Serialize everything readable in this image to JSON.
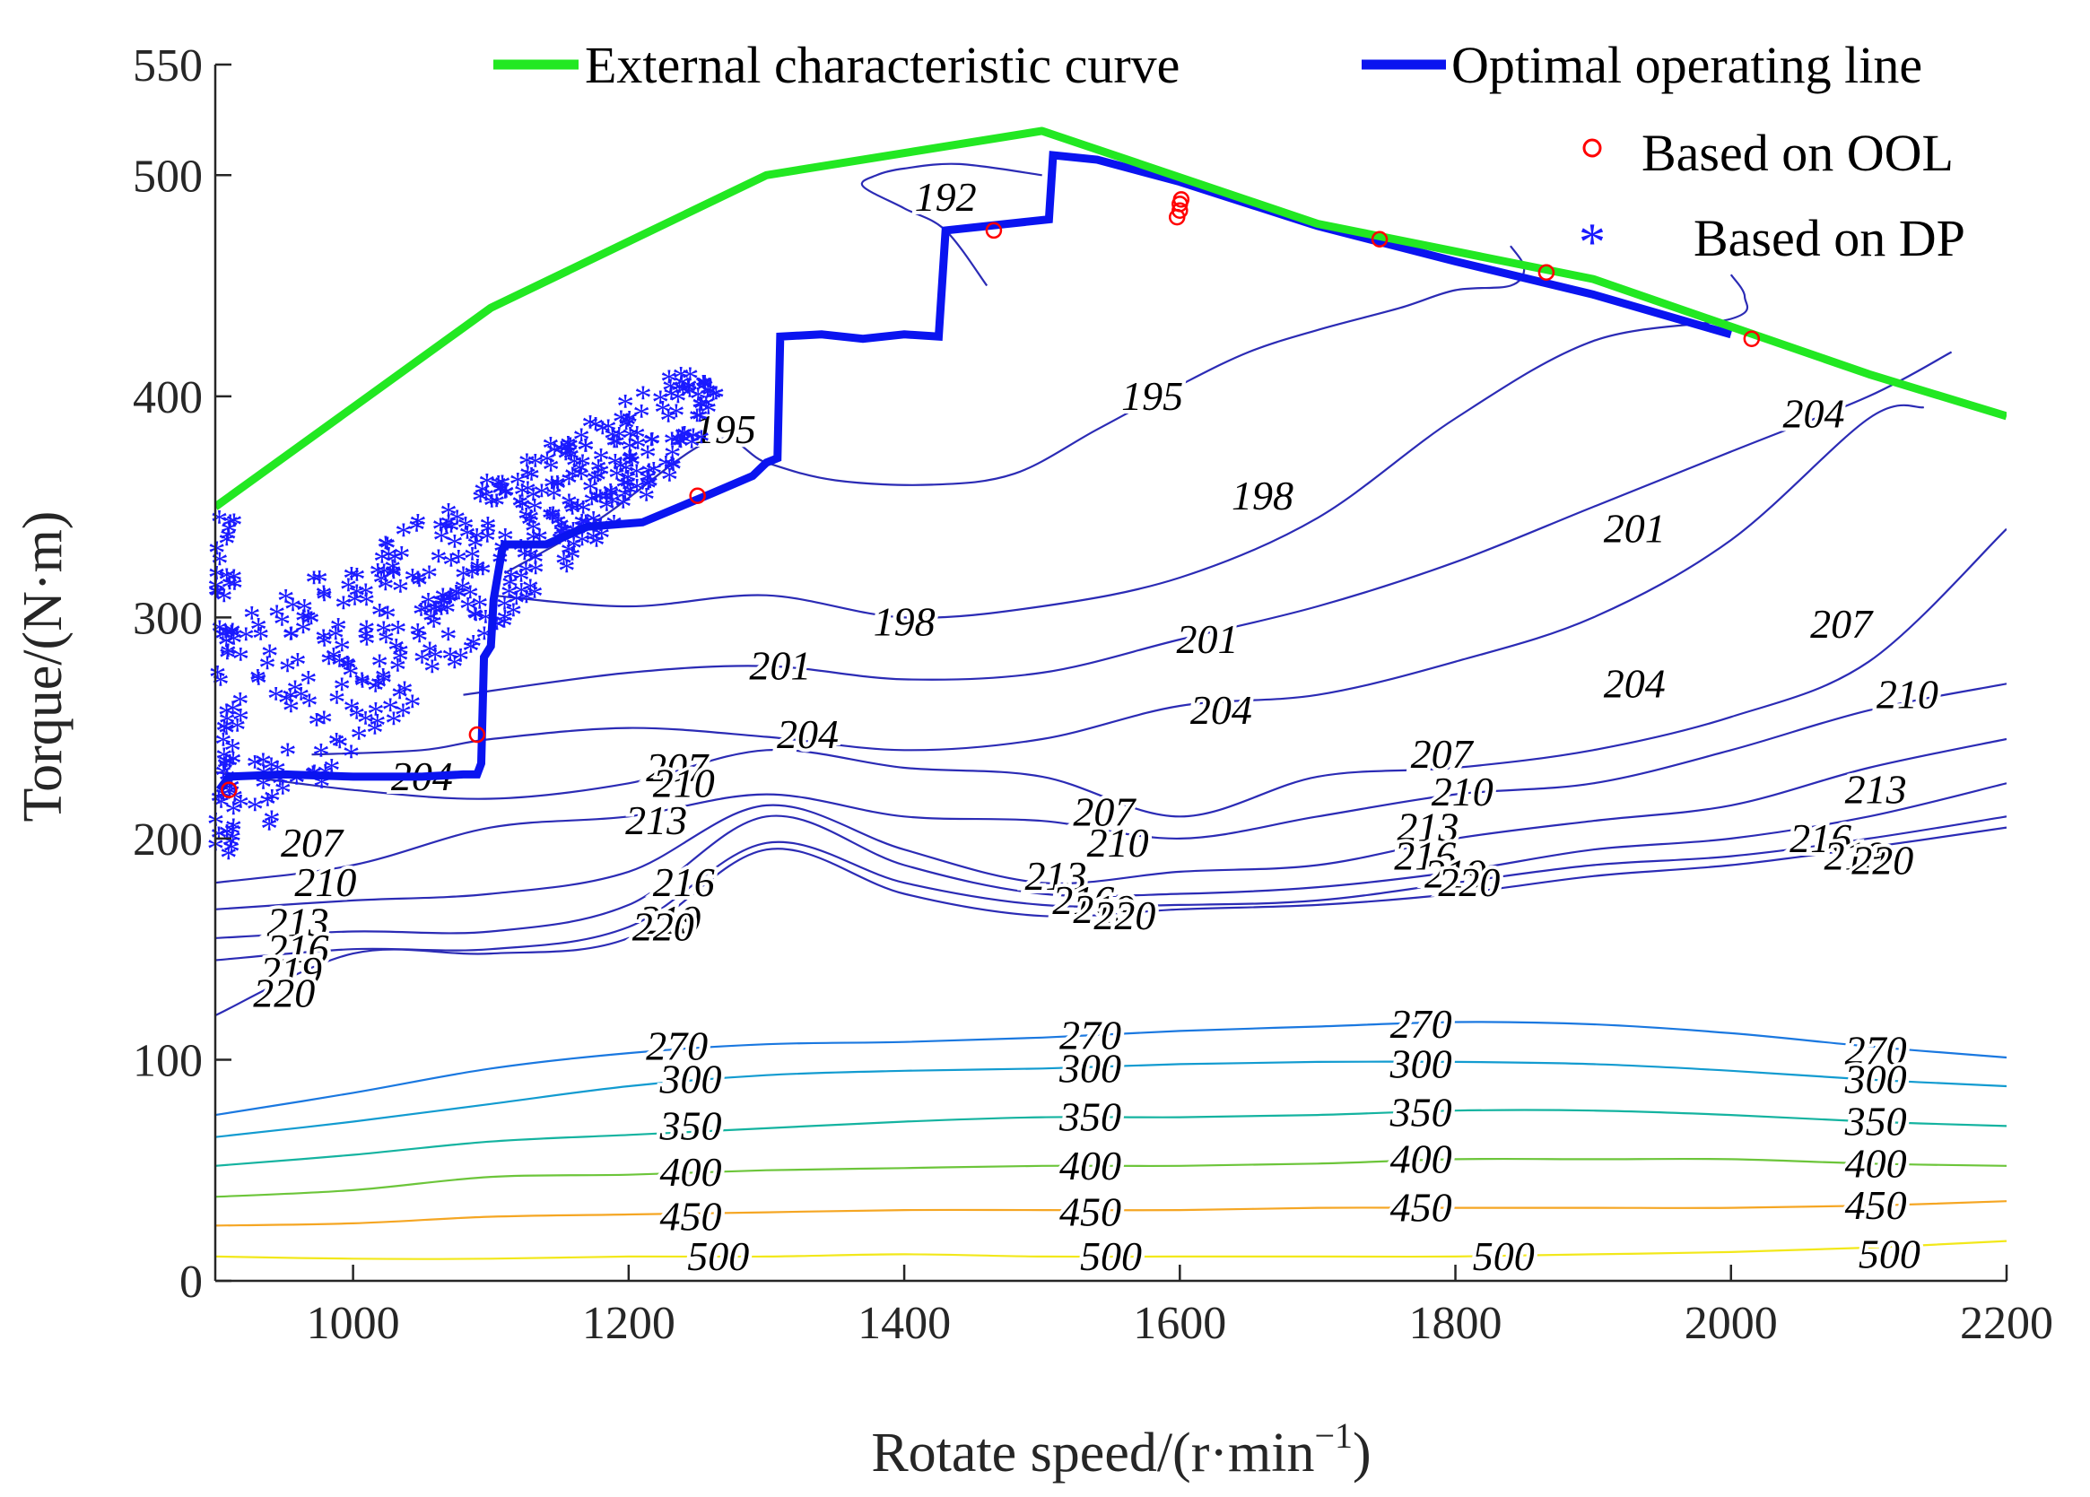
{
  "chart_data": {
    "type": "line",
    "xlabel": "Rotate speed/(r·min",
    "xlabel_exponent": "−1",
    "xlabel_close": ")",
    "ylabel": "Torque/(N·m)",
    "xlim": [
      900,
      2200
    ],
    "ylim": [
      0,
      550
    ],
    "xticks": [
      1000,
      1200,
      1400,
      1600,
      1800,
      2000,
      2200
    ],
    "yticks": [
      0,
      100,
      200,
      300,
      400,
      500,
      550
    ],
    "legend_position": "top-right",
    "series": [
      {
        "name": "External characteristic curve",
        "color": "#22e822",
        "x": [
          900,
          1100,
          1300,
          1500,
          1700,
          1900,
          2100,
          2200
        ],
        "y": [
          350,
          440,
          500,
          520,
          478,
          453,
          410,
          391
        ]
      },
      {
        "name": "Optimal operating line",
        "color": "#0a14f0",
        "x": [
          903,
          910,
          950,
          1000,
          1050,
          1080,
          1090,
          1093,
          1095,
          1100,
          1102,
          1108,
          1110,
          1140,
          1170,
          1210,
          1260,
          1290,
          1300,
          1308,
          1310,
          1340,
          1370,
          1400,
          1425,
          1430,
          1460,
          1505,
          1508,
          1540,
          1600,
          1700,
          1800,
          1900,
          2000
        ],
        "y": [
          222,
          228,
          229,
          228,
          228,
          229,
          229,
          234,
          282,
          287,
          308,
          330,
          333,
          333,
          341,
          343,
          356,
          364,
          370,
          372,
          427,
          428,
          426,
          428,
          427,
          475,
          477,
          480,
          509,
          507,
          497,
          477,
          461,
          446,
          428
        ]
      },
      {
        "name": "Based on OOL",
        "color": "#ff0000",
        "marker": "circle",
        "x": [
          910,
          1090,
          1250,
          1465,
          1598,
          1600,
          1600,
          1601,
          1745,
          1866,
          2015
        ],
        "y": [
          222,
          247,
          355,
          475,
          481,
          484,
          487,
          489,
          471,
          456,
          426
        ]
      },
      {
        "name": "Based on DP",
        "color": "#1a1aff",
        "marker": "asterisk",
        "count_note": "cloud of several hundred asterisks, approx. x 900-1270, y 190-410"
      }
    ],
    "contours": [
      {
        "level": 192,
        "x": [
          1460,
          1430,
          1400,
          1370,
          1380,
          1400,
          1440,
          1500
        ],
        "y": [
          450,
          475,
          485,
          495,
          500,
          503,
          505,
          500
        ],
        "labels": [
          [
            1430,
            490
          ]
        ]
      },
      {
        "level": 195,
        "x": [
          1110,
          1180,
          1260,
          1300,
          1350,
          1420,
          1480,
          1540,
          1600,
          1650,
          1700,
          1760,
          1800,
          1840,
          1850,
          1840
        ],
        "y": [
          320,
          345,
          380,
          370,
          362,
          360,
          365,
          385,
          405,
          420,
          430,
          440,
          448,
          450,
          458,
          468
        ],
        "labels": [
          [
            1270,
            385
          ],
          [
            1580,
            400
          ]
        ]
      },
      {
        "level": 198,
        "x": [
          1100,
          1200,
          1300,
          1400,
          1500,
          1600,
          1700,
          1800,
          1900,
          2000,
          2010,
          2000
        ],
        "y": [
          310,
          305,
          310,
          300,
          305,
          318,
          345,
          390,
          425,
          435,
          445,
          455
        ],
        "labels": [
          [
            1400,
            298
          ],
          [
            1660,
            355
          ]
        ]
      },
      {
        "level": 201,
        "x": [
          1080,
          1200,
          1300,
          1400,
          1500,
          1600,
          1700,
          1800,
          1900,
          2000,
          2100,
          2160
        ],
        "y": [
          265,
          275,
          278,
          272,
          275,
          290,
          305,
          325,
          350,
          375,
          400,
          420
        ],
        "labels": [
          [
            1310,
            278
          ],
          [
            1620,
            290
          ],
          [
            1930,
            340
          ]
        ]
      },
      {
        "level": 204,
        "x": [
          970,
          1050,
          1100,
          1200,
          1300,
          1400,
          1500,
          1600,
          1700,
          1800,
          1900,
          2000,
          2100,
          2140
        ],
        "y": [
          238,
          240,
          245,
          250,
          246,
          240,
          245,
          260,
          265,
          280,
          300,
          335,
          390,
          395
        ],
        "labels": [
          [
            1050,
            228
          ],
          [
            1330,
            247
          ],
          [
            1630,
            258
          ],
          [
            1930,
            270
          ],
          [
            2060,
            392
          ]
        ]
      },
      {
        "level": 207,
        "x": [
          900,
          1000,
          1100,
          1200,
          1300,
          1400,
          1500,
          1600,
          1700,
          1800,
          1900,
          2000,
          2100,
          2200
        ],
        "y": [
          230,
          222,
          218,
          225,
          240,
          232,
          228,
          210,
          228,
          232,
          240,
          255,
          280,
          340
        ],
        "labels": [
          [
            970,
            198
          ],
          [
            1235,
            232
          ],
          [
            1545,
            212
          ],
          [
            1790,
            238
          ],
          [
            2080,
            297
          ]
        ]
      },
      {
        "level": 210,
        "x": [
          900,
          1000,
          1100,
          1200,
          1300,
          1400,
          1500,
          1600,
          1700,
          1800,
          1900,
          2000,
          2100,
          2200
        ],
        "y": [
          180,
          188,
          205,
          210,
          220,
          210,
          208,
          200,
          210,
          220,
          225,
          240,
          258,
          270
        ],
        "labels": [
          [
            980,
            180
          ],
          [
            1240,
            225
          ],
          [
            1555,
            198
          ],
          [
            1805,
            221
          ],
          [
            2128,
            265
          ]
        ]
      },
      {
        "level": 213,
        "x": [
          900,
          1000,
          1100,
          1200,
          1300,
          1400,
          1500,
          1600,
          1700,
          1800,
          1900,
          2000,
          2100,
          2200
        ],
        "y": [
          168,
          172,
          175,
          185,
          215,
          195,
          180,
          185,
          188,
          200,
          208,
          215,
          232,
          245
        ],
        "labels": [
          [
            960,
            162
          ],
          [
            1220,
            208
          ],
          [
            1510,
            183
          ],
          [
            1780,
            205
          ],
          [
            2105,
            222
          ]
        ]
      },
      {
        "level": 216,
        "x": [
          900,
          1000,
          1100,
          1200,
          1300,
          1400,
          1500,
          1600,
          1700,
          1800,
          1900,
          2000,
          2100,
          2200
        ],
        "y": [
          155,
          158,
          158,
          170,
          210,
          188,
          175,
          175,
          178,
          185,
          195,
          200,
          210,
          225
        ],
        "labels": [
          [
            960,
            150
          ],
          [
            1240,
            180
          ],
          [
            1530,
            172
          ],
          [
            1778,
            192
          ],
          [
            2065,
            200
          ]
        ]
      },
      {
        "level": 219,
        "x": [
          900,
          1000,
          1100,
          1200,
          1300,
          1400,
          1500,
          1600,
          1700,
          1800,
          1900,
          2000,
          2100,
          2200
        ],
        "y": [
          145,
          150,
          150,
          160,
          198,
          180,
          170,
          170,
          172,
          180,
          188,
          192,
          200,
          210
        ],
        "labels": [
          [
            955,
            140
          ],
          [
            1230,
            163
          ],
          [
            1545,
            168
          ],
          [
            1800,
            184
          ],
          [
            2090,
            192
          ]
        ]
      },
      {
        "level": 220,
        "x": [
          900,
          1000,
          1100,
          1200,
          1300,
          1400,
          1500,
          1600,
          1700,
          1800,
          1900,
          2000,
          2100,
          2200
        ],
        "y": [
          120,
          148,
          148,
          155,
          195,
          175,
          165,
          168,
          170,
          175,
          183,
          188,
          196,
          205
        ],
        "labels": [
          [
            950,
            130
          ],
          [
            1225,
            160
          ],
          [
            1560,
            165
          ],
          [
            1810,
            180
          ],
          [
            2110,
            190
          ]
        ]
      },
      {
        "level": 270,
        "x": [
          900,
          1000,
          1100,
          1200,
          1300,
          1400,
          1500,
          1600,
          1700,
          1800,
          1900,
          2000,
          2100,
          2200
        ],
        "y": [
          75,
          85,
          96,
          103,
          107,
          108,
          110,
          113,
          115,
          117,
          116,
          112,
          106,
          101
        ],
        "labels": [
          [
            1235,
            106
          ],
          [
            1535,
            111
          ],
          [
            1775,
            116
          ],
          [
            2105,
            104
          ]
        ]
      },
      {
        "level": 300,
        "x": [
          900,
          1000,
          1100,
          1200,
          1300,
          1400,
          1500,
          1600,
          1700,
          1800,
          1900,
          2000,
          2100,
          2200
        ],
        "y": [
          65,
          72,
          80,
          88,
          93,
          95,
          96,
          98,
          99,
          99,
          98,
          95,
          91,
          88
        ],
        "labels": [
          [
            1245,
            91
          ],
          [
            1535,
            96
          ],
          [
            1775,
            98
          ],
          [
            2105,
            91
          ]
        ]
      },
      {
        "level": 350,
        "x": [
          900,
          1000,
          1100,
          1200,
          1300,
          1400,
          1500,
          1600,
          1700,
          1800,
          1900,
          2000,
          2100,
          2200
        ],
        "y": [
          52,
          57,
          63,
          66,
          69,
          72,
          74,
          74,
          75,
          77,
          77,
          75,
          72,
          70
        ],
        "labels": [
          [
            1245,
            70
          ],
          [
            1535,
            74
          ],
          [
            1775,
            76
          ],
          [
            2105,
            72
          ]
        ]
      },
      {
        "level": 400,
        "x": [
          900,
          1000,
          1100,
          1200,
          1300,
          1400,
          1500,
          1600,
          1700,
          1800,
          1900,
          2000,
          2100,
          2200
        ],
        "y": [
          38,
          41,
          47,
          48,
          50,
          51,
          52,
          52,
          53,
          55,
          55,
          55,
          53,
          52
        ],
        "labels": [
          [
            1245,
            49
          ],
          [
            1535,
            52
          ],
          [
            1775,
            55
          ],
          [
            2105,
            53
          ]
        ]
      },
      {
        "level": 450,
        "x": [
          900,
          1000,
          1100,
          1200,
          1300,
          1400,
          1500,
          1600,
          1700,
          1800,
          1900,
          2000,
          2100,
          2200
        ],
        "y": [
          25,
          26,
          29,
          30,
          31,
          32,
          32,
          32,
          33,
          33,
          33,
          33,
          34,
          36
        ],
        "labels": [
          [
            1245,
            29
          ],
          [
            1535,
            31
          ],
          [
            1775,
            33
          ],
          [
            2105,
            34
          ]
        ]
      },
      {
        "level": 500,
        "x": [
          900,
          1000,
          1100,
          1200,
          1300,
          1400,
          1500,
          1600,
          1700,
          1800,
          1900,
          2000,
          2100,
          2200
        ],
        "y": [
          11,
          10,
          10,
          11,
          11,
          12,
          11,
          11,
          11,
          11,
          12,
          13,
          15,
          18
        ],
        "labels": [
          [
            1265,
            11
          ],
          [
            1550,
            11
          ],
          [
            1835,
            11
          ],
          [
            2115,
            12
          ]
        ]
      }
    ],
    "contour_colors": {
      "192": "#2b2bb5",
      "195": "#2b2bb5",
      "198": "#2b2bb5",
      "201": "#2b2bb5",
      "204": "#2b2bb5",
      "207": "#2b2bb5",
      "210": "#2b2bb5",
      "213": "#2b2bb5",
      "216": "#2b2bb5",
      "219": "#2b2bb5",
      "220": "#2b2bb5",
      "270": "#1a78e0",
      "300": "#129bd0",
      "350": "#14b3a0",
      "400": "#6cc53a",
      "450": "#f5a623",
      "500": "#f2e81a"
    }
  }
}
